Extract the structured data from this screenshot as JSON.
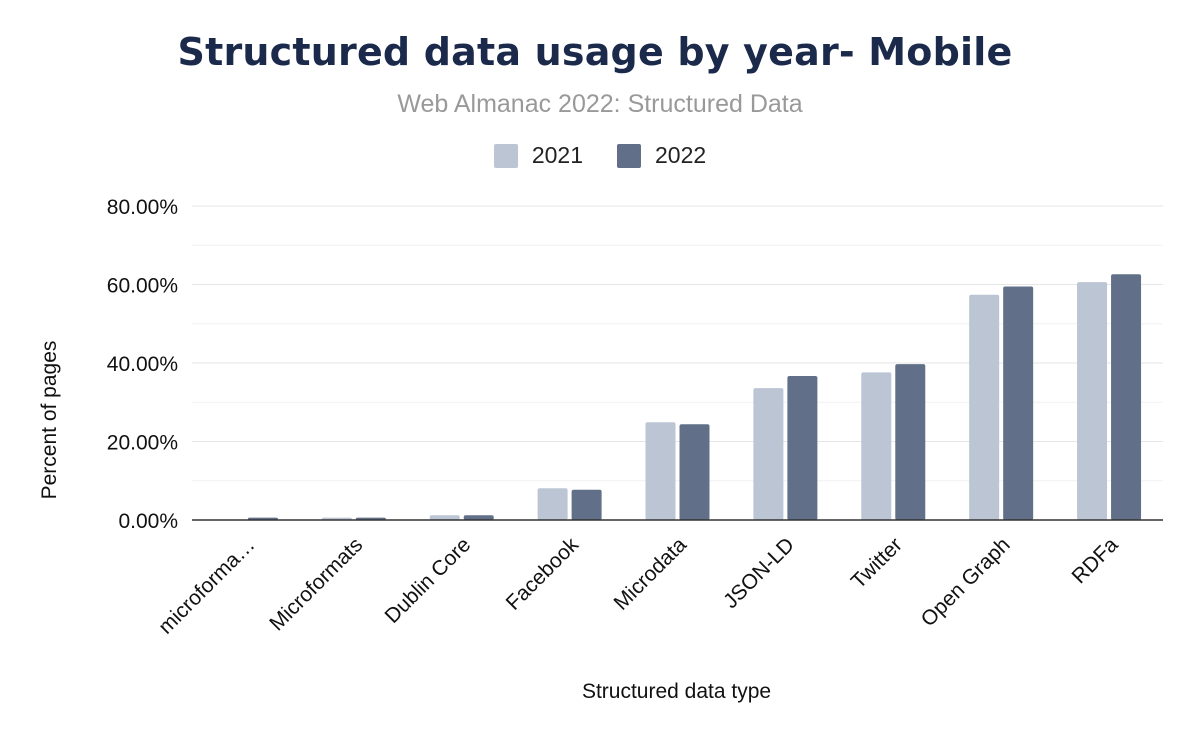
{
  "chart_data": {
    "type": "bar",
    "title": "Structured data usage by year- Mobile",
    "subtitle": "Web Almanac 2022: Structured Data",
    "xlabel": "Structured data type",
    "ylabel": "Percent of pages",
    "ylim": [
      0,
      80
    ],
    "yticks": [
      "0.00%",
      "20.00%",
      "40.00%",
      "60.00%",
      "80.00%"
    ],
    "categories": [
      "microforma…",
      "Microformats",
      "Dublin Core",
      "Facebook",
      "Microdata",
      "JSON-LD",
      "Twitter",
      "Open Graph",
      "RDFa"
    ],
    "series": [
      {
        "name": "2021",
        "color": "#bcc5d4",
        "values": [
          0.1,
          0.6,
          1.2,
          8.1,
          24.9,
          33.6,
          37.6,
          57.4,
          60.6
        ]
      },
      {
        "name": "2022",
        "color": "#617088",
        "values": [
          0.6,
          0.6,
          1.2,
          7.7,
          24.4,
          36.7,
          39.7,
          59.5,
          62.6
        ]
      }
    ],
    "grid": true,
    "legend": "top-center"
  }
}
